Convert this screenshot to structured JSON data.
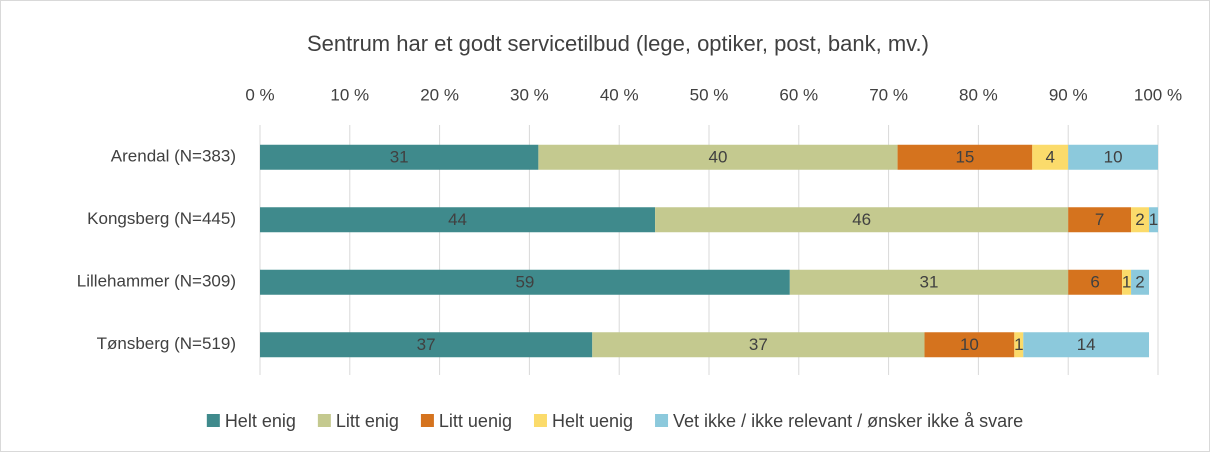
{
  "chart_data": {
    "type": "stacked_barh",
    "title": "Sentrum har et godt servicetilbud (lege, optiker, post, bank, mv.)",
    "categories": [
      "Arendal (N=383)",
      "Kongsberg (N=445)",
      "Lillehammer (N=309)",
      "Tønsberg (N=519)"
    ],
    "series": [
      {
        "name": "Helt enig",
        "color": "#3f8a8c",
        "values": [
          31,
          44,
          59,
          37
        ]
      },
      {
        "name": "Litt enig",
        "color": "#c4c98f",
        "values": [
          40,
          46,
          31,
          37
        ]
      },
      {
        "name": "Litt uenig",
        "color": "#d5731e",
        "values": [
          15,
          7,
          6,
          10
        ]
      },
      {
        "name": "Helt uenig",
        "color": "#fbdb6b",
        "values": [
          4,
          2,
          1,
          1
        ]
      },
      {
        "name": "Vet ikke / ikke relevant / ønsker ikke å svare",
        "color": "#8cc9dc",
        "values": [
          10,
          1,
          2,
          14
        ]
      }
    ],
    "xlim": [
      0,
      100
    ],
    "xticks": [
      {
        "value": 0,
        "label": "0 %"
      },
      {
        "value": 10,
        "label": "10 %"
      },
      {
        "value": 20,
        "label": "20 %"
      },
      {
        "value": 30,
        "label": "30 %"
      },
      {
        "value": 40,
        "label": "40 %"
      },
      {
        "value": 50,
        "label": "50 %"
      },
      {
        "value": 60,
        "label": "60 %"
      },
      {
        "value": 70,
        "label": "70 %"
      },
      {
        "value": 80,
        "label": "80 %"
      },
      {
        "value": 90,
        "label": "90 %"
      },
      {
        "value": 100,
        "label": "100 %"
      }
    ],
    "grid": true,
    "legend": "bottom"
  }
}
